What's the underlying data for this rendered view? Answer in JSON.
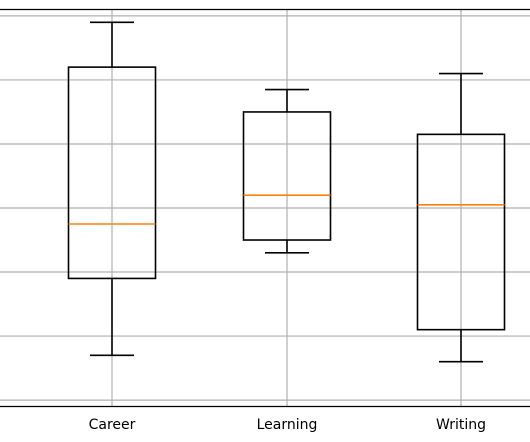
{
  "chart_data": {
    "type": "boxplot",
    "categories": [
      "Career",
      "Learning",
      "Writing"
    ],
    "boxes": [
      {
        "whislo": 1.7,
        "q1": 2.9,
        "med": 3.75,
        "q3": 6.2,
        "whishi": 6.9
      },
      {
        "whislo": 3.3,
        "q1": 3.5,
        "med": 4.2,
        "q3": 5.5,
        "whishi": 5.85
      },
      {
        "whislo": 1.6,
        "q1": 2.1,
        "med": 4.05,
        "q3": 5.15,
        "whishi": 6.1
      }
    ],
    "ylim": [
      0.9,
      7.1
    ],
    "yticks": [
      1,
      2,
      3,
      4,
      5,
      6,
      7
    ],
    "grid": true,
    "colors": {
      "box": "#000000",
      "median": "#ff7f0e",
      "grid": "#b0b0b0",
      "axis": "#000000"
    }
  }
}
